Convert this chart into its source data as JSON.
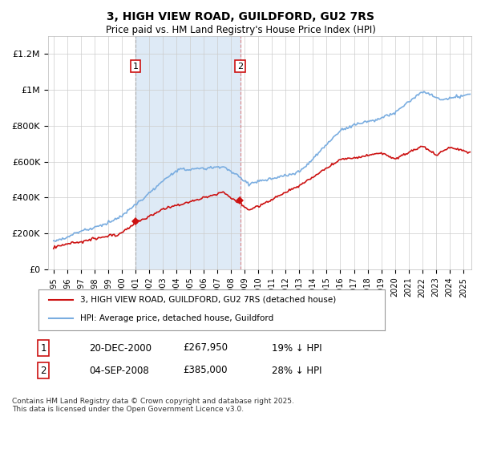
{
  "title": "3, HIGH VIEW ROAD, GUILDFORD, GU2 7RS",
  "subtitle": "Price paid vs. HM Land Registry's House Price Index (HPI)",
  "ylim": [
    0,
    1300000
  ],
  "yticks": [
    0,
    200000,
    400000,
    600000,
    800000,
    1000000,
    1200000
  ],
  "ytick_labels": [
    "£0",
    "£200K",
    "£400K",
    "£600K",
    "£800K",
    "£1M",
    "£1.2M"
  ],
  "hpi_color": "#7aade0",
  "price_color": "#cc1111",
  "shaded_color": "#deeaf6",
  "vline1_color": "#aaaaaa",
  "vline2_color": "#dd8888",
  "annotation1": {
    "date": "20-DEC-2000",
    "price": "£267,950",
    "note": "19% ↓ HPI",
    "label": "1",
    "x_year": 2001.0
  },
  "annotation2": {
    "date": "04-SEP-2008",
    "price": "£385,000",
    "note": "28% ↓ HPI",
    "label": "2",
    "x_year": 2008.67
  },
  "legend_property": "3, HIGH VIEW ROAD, GUILDFORD, GU2 7RS (detached house)",
  "legend_hpi": "HPI: Average price, detached house, Guildford",
  "footer": "Contains HM Land Registry data © Crown copyright and database right 2025.\nThis data is licensed under the Open Government Licence v3.0.",
  "xmin": 1994.6,
  "xmax": 2025.6,
  "marker_size": 5
}
